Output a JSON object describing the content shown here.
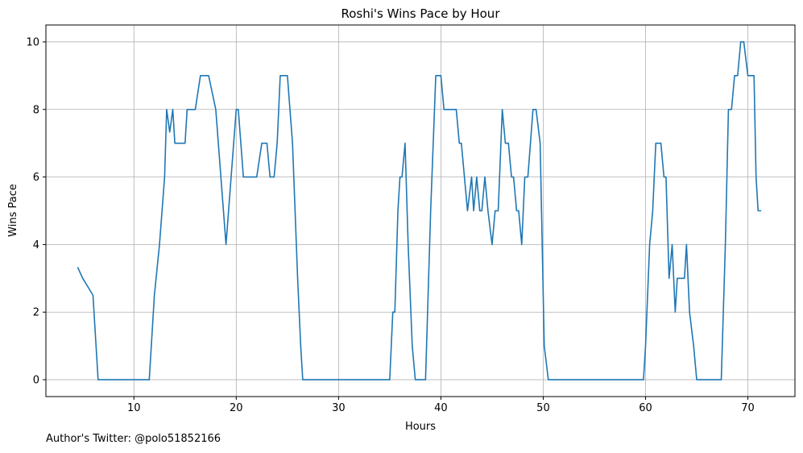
{
  "chart_data": {
    "type": "line",
    "title": "Roshi's Wins Pace by Hour",
    "xlabel": "Hours",
    "ylabel": "Wins Pace",
    "xlim": [
      1.4,
      74.6
    ],
    "ylim": [
      -0.5,
      10.5
    ],
    "xticks": [
      10,
      20,
      30,
      40,
      50,
      60,
      70
    ],
    "yticks": [
      0,
      2,
      4,
      6,
      8,
      10
    ],
    "grid": true,
    "line_color": "#1f77b4",
    "series": [
      {
        "x": [
          4.5,
          5.0,
          6.0,
          6.5,
          11.5,
          12.0,
          12.5,
          13.0,
          13.2,
          13.5,
          13.8,
          14.0,
          15.0,
          15.2,
          16.0,
          16.5,
          17.0,
          17.3,
          18.0,
          19.0,
          19.5,
          20.0,
          20.2,
          20.7,
          21.0,
          22.0,
          22.5,
          23.0,
          23.3,
          23.7,
          24.0,
          24.3,
          25.0,
          25.5,
          26.0,
          26.3,
          26.5,
          35.0,
          35.3,
          35.5,
          35.8,
          36.0,
          36.2,
          36.5,
          36.8,
          37.2,
          37.5,
          37.8,
          38.5,
          39.0,
          39.5,
          40.0,
          40.3,
          40.5,
          41.5,
          41.8,
          42.0,
          42.6,
          43.0,
          43.2,
          43.5,
          43.8,
          44.0,
          44.3,
          44.6,
          45.0,
          45.3,
          45.6,
          46.0,
          46.3,
          46.6,
          46.9,
          47.1,
          47.4,
          47.6,
          47.9,
          48.2,
          48.5,
          49.0,
          49.3,
          49.7,
          50.1,
          50.5,
          59.8,
          60.0,
          60.4,
          60.7,
          61.0,
          61.5,
          61.8,
          62.0,
          62.3,
          62.6,
          62.9,
          63.1,
          63.4,
          63.8,
          64.0,
          64.3,
          64.7,
          65.0,
          65.3,
          67.4,
          67.8,
          68.1,
          68.4,
          68.7,
          69.0,
          69.3,
          69.6,
          70.0,
          70.3,
          70.6,
          70.8,
          71.0,
          71.3
        ],
        "y": [
          3.33,
          3.0,
          2.5,
          0,
          0,
          2.5,
          4.0,
          6.0,
          8.0,
          7.33,
          8.0,
          7.0,
          7.0,
          8.0,
          8.0,
          9.0,
          9.0,
          9.0,
          8.0,
          4.0,
          6.0,
          8.0,
          8.0,
          6.0,
          6.0,
          6.0,
          7.0,
          7.0,
          6.0,
          6.0,
          7.0,
          9.0,
          9.0,
          7.0,
          3.0,
          1.0,
          0,
          0,
          2.0,
          2.0,
          5.0,
          6.0,
          6.0,
          7.0,
          4.0,
          1.0,
          0,
          0,
          0,
          5.0,
          9.0,
          9.0,
          8.0,
          8.0,
          8.0,
          7.0,
          7.0,
          5.0,
          6.0,
          5.0,
          6.0,
          5.0,
          5.0,
          6.0,
          5.0,
          4.0,
          5.0,
          5.0,
          8.0,
          7.0,
          7.0,
          6.0,
          6.0,
          5.0,
          5.0,
          4.0,
          6.0,
          6.0,
          8.0,
          8.0,
          7.0,
          1.0,
          0,
          0,
          1.0,
          4.0,
          5.0,
          7.0,
          7.0,
          6.0,
          6.0,
          3.0,
          4.0,
          2.0,
          3.0,
          3.0,
          3.0,
          4.0,
          2.0,
          1.0,
          0,
          0,
          0,
          4.0,
          8.0,
          8.0,
          9.0,
          9.0,
          10.0,
          10.0,
          9.0,
          9.0,
          9.0,
          6.0,
          5.0,
          5.0
        ]
      }
    ]
  },
  "footer": {
    "credit": "Author's Twitter: @polo51852166"
  }
}
